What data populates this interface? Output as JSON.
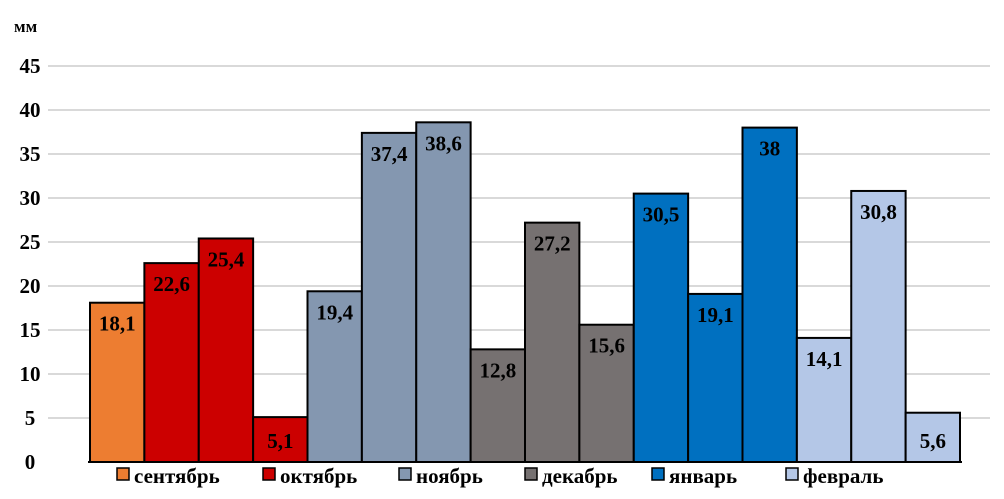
{
  "chart_data": {
    "type": "bar",
    "title": "",
    "xlabel": "",
    "ylabel": "мм",
    "ylim": [
      0,
      45
    ],
    "yticks": [
      0,
      5,
      10,
      15,
      20,
      25,
      30,
      35,
      40,
      45
    ],
    "grid": true,
    "legend_placement": "bottom",
    "series": [
      {
        "name": "сентябрь",
        "color": "#ED7D31",
        "values": [
          18.1
        ],
        "labels": [
          "18,1"
        ]
      },
      {
        "name": "октябрь",
        "color": "#CC0000",
        "values": [
          22.6,
          25.4,
          5.1
        ],
        "labels": [
          "22,6",
          "25,4",
          "5,1"
        ]
      },
      {
        "name": "ноябрь",
        "color": "#8497B0",
        "values": [
          19.4,
          37.4,
          38.6
        ],
        "labels": [
          "19,4",
          "37,4",
          "38,6"
        ]
      },
      {
        "name": "декабрь",
        "color": "#767171",
        "values": [
          12.8,
          27.2,
          15.6
        ],
        "labels": [
          "12,8",
          "27,2",
          "15,6"
        ]
      },
      {
        "name": "январь",
        "color": "#0070C0",
        "values": [
          30.5,
          19.1,
          38
        ],
        "labels": [
          "30,5",
          "19,1",
          "38"
        ]
      },
      {
        "name": "февраль",
        "color": "#B4C7E7",
        "values": [
          14.1,
          30.8,
          5.6
        ],
        "labels": [
          "14,1",
          "30,8",
          "5,6"
        ]
      }
    ]
  }
}
